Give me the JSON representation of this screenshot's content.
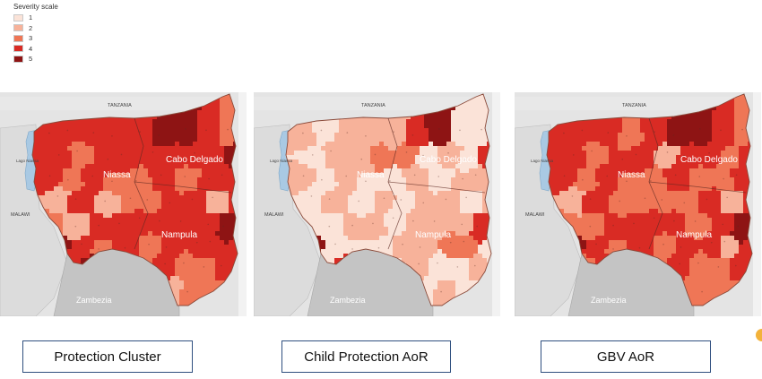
{
  "legend": {
    "title": "Severity scale",
    "items": [
      {
        "label": "1",
        "color": "#fbe3d8"
      },
      {
        "label": "2",
        "color": "#f7b29a"
      },
      {
        "label": "3",
        "color": "#ef7656"
      },
      {
        "label": "4",
        "color": "#d92b24"
      },
      {
        "label": "5",
        "color": "#8e1414"
      }
    ]
  },
  "map_labels": {
    "tanzania": "TANZANIA",
    "malawi": "MALAWI",
    "lake": "Lago Niassa",
    "niassa": "Niassa",
    "cabo_delgado": "Cabo Delgado",
    "nampula": "Nampula",
    "zambezia": "Zambezia"
  },
  "colors": {
    "water": "#a9c9e3",
    "background_land": "#e4e4e4",
    "zambezia_land": "#c4c4c4",
    "border_line": "#8a4a3a",
    "caption_border": "#2f4f7f"
  },
  "maps": [
    {
      "caption": "Protection Cluster",
      "district_severity": [
        4,
        4,
        4,
        4,
        4,
        5,
        5,
        4,
        3,
        4,
        3,
        4,
        4,
        4,
        4,
        4,
        4,
        5,
        4,
        3,
        4,
        3,
        3,
        4,
        3,
        4,
        4,
        2,
        4,
        2,
        3,
        3,
        4,
        4,
        2,
        4,
        3,
        2,
        4
      ]
    },
    {
      "caption": "Child Protection AoR",
      "district_severity": [
        2,
        1,
        2,
        2,
        2,
        4,
        5,
        1,
        1,
        1,
        2,
        2,
        3,
        3,
        1,
        2,
        1,
        4,
        2,
        1,
        2,
        1,
        1,
        2,
        1,
        2,
        2,
        1,
        2,
        1,
        2,
        1,
        2,
        2,
        1,
        2,
        1,
        1,
        2
      ]
    },
    {
      "caption": "GBV AoR",
      "district_severity": [
        4,
        4,
        4,
        3,
        4,
        5,
        5,
        4,
        3,
        4,
        3,
        4,
        4,
        2,
        4,
        4,
        3,
        4,
        4,
        3,
        4,
        3,
        3,
        4,
        3,
        3,
        4,
        2,
        4,
        3,
        3,
        3,
        3,
        4,
        2,
        4,
        3,
        3,
        4
      ]
    }
  ]
}
